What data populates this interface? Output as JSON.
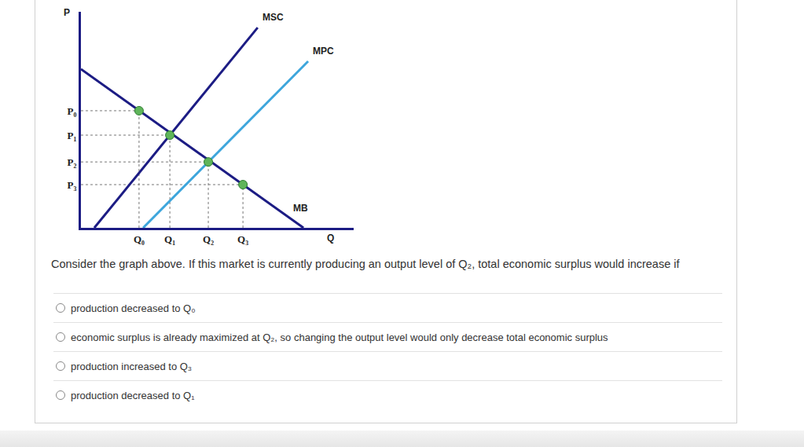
{
  "chart_data": {
    "type": "line",
    "x_label": "Q",
    "y_label": "P",
    "xlim": [
      0,
      10
    ],
    "ylim": [
      0,
      10
    ],
    "xticks": [
      {
        "value": 2.13,
        "label": "Q₀"
      },
      {
        "value": 3.26,
        "label": "Q₁"
      },
      {
        "value": 4.67,
        "label": "Q₂"
      },
      {
        "value": 5.94,
        "label": "Q₃"
      }
    ],
    "yticks": [
      {
        "value": 5.42,
        "label": "P₀"
      },
      {
        "value": 4.29,
        "label": "P₁"
      },
      {
        "value": 3.05,
        "label": "P₂"
      },
      {
        "value": 2.0,
        "label": "P₃"
      }
    ],
    "grid": false,
    "series": [
      {
        "name": "MSC",
        "color": "#1c1c84",
        "x": [
          0.49,
          6.48
        ],
        "values": [
          0,
          9.27
        ]
      },
      {
        "name": "MPC",
        "color": "#3ea6dc",
        "x": [
          2.28,
          8.33
        ],
        "values": [
          0,
          7.71
        ]
      },
      {
        "name": "MB",
        "color": "#1c1c84",
        "x": [
          0,
          8.16
        ],
        "values": [
          7.35,
          0
        ]
      },
      {
        "type": "scatter",
        "marker": "circle",
        "line_style": "dotted",
        "color": "#5fb55a",
        "x": [
          2.13,
          3.26,
          4.67,
          5.94
        ],
        "values": [
          5.42,
          4.29,
          3.05,
          2.0
        ]
      }
    ]
  },
  "question": {
    "text": "Consider the graph above. If this market is currently producing an output level of Q₂, total economic surplus would increase if",
    "options": [
      "production decreased to Q₀",
      "economic surplus is already maximized at Q₂, so changing the output level would only decrease total economic surplus",
      "production increased to Q₃",
      "production decreased to Q₁"
    ]
  }
}
